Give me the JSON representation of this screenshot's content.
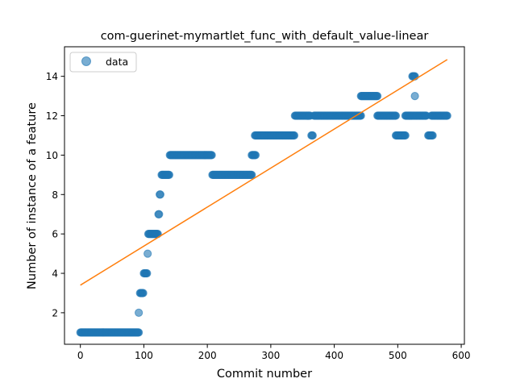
{
  "chart_data": {
    "type": "scatter",
    "title": "com-guerinet-mymartlet_func_with_default_value-linear",
    "xlabel": "Commit number",
    "ylabel": "Number of instance of a feature",
    "xlim": [
      -25,
      605
    ],
    "ylim": [
      0.4,
      15.5
    ],
    "xticks": [
      0,
      100,
      200,
      300,
      400,
      500,
      600
    ],
    "yticks": [
      2,
      4,
      6,
      8,
      10,
      12,
      14
    ],
    "grid": false,
    "legend": {
      "position": "top-left",
      "entries": [
        "data"
      ]
    },
    "colors": {
      "data": "#1f77b4",
      "fit": "#ff7f0e"
    },
    "series": [
      {
        "name": "data",
        "kind": "points",
        "segments": [
          {
            "x_start": 0,
            "x_end": 92,
            "y": 1
          },
          {
            "x_start": 92,
            "x_end": 92,
            "y": 2
          },
          {
            "x_start": 94,
            "x_end": 99,
            "y": 3
          },
          {
            "x_start": 100,
            "x_end": 105,
            "y": 4
          },
          {
            "x_start": 106,
            "x_end": 106,
            "y": 5
          },
          {
            "x_start": 107,
            "x_end": 122,
            "y": 6
          },
          {
            "x_start": 123,
            "x_end": 124,
            "y": 7
          },
          {
            "x_start": 125,
            "x_end": 126,
            "y": 8
          },
          {
            "x_start": 128,
            "x_end": 140,
            "y": 9
          },
          {
            "x_start": 141,
            "x_end": 207,
            "y": 10
          },
          {
            "x_start": 208,
            "x_end": 270,
            "y": 9
          },
          {
            "x_start": 270,
            "x_end": 276,
            "y": 10
          },
          {
            "x_start": 275,
            "x_end": 337,
            "y": 11
          },
          {
            "x_start": 338,
            "x_end": 362,
            "y": 12
          },
          {
            "x_start": 364,
            "x_end": 366,
            "y": 11
          },
          {
            "x_start": 368,
            "x_end": 442,
            "y": 12
          },
          {
            "x_start": 442,
            "x_end": 468,
            "y": 13
          },
          {
            "x_start": 468,
            "x_end": 497,
            "y": 12
          },
          {
            "x_start": 497,
            "x_end": 512,
            "y": 11
          },
          {
            "x_start": 512,
            "x_end": 545,
            "y": 12
          },
          {
            "x_start": 523,
            "x_end": 527,
            "y": 14
          },
          {
            "x_start": 527,
            "x_end": 527,
            "y": 13
          },
          {
            "x_start": 548,
            "x_end": 555,
            "y": 11
          },
          {
            "x_start": 553,
            "x_end": 578,
            "y": 12
          }
        ]
      },
      {
        "name": "",
        "kind": "line",
        "x": [
          0,
          578
        ],
        "y": [
          3.4,
          14.85
        ]
      }
    ]
  }
}
